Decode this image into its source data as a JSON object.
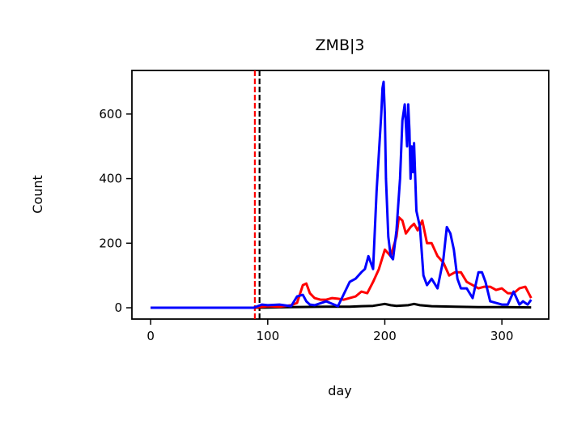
{
  "chart_data": {
    "type": "line",
    "title": "ZMB|3",
    "xlabel": "day",
    "ylabel": "Count",
    "xlim": [
      -16,
      340
    ],
    "ylim": [
      -35,
      735
    ],
    "xticks": [
      0,
      100,
      200,
      300
    ],
    "yticks": [
      0,
      200,
      400,
      600
    ],
    "grid": false,
    "legend": "none",
    "vlines": [
      {
        "x": 89,
        "color": "#ff0000",
        "style": "dashed"
      },
      {
        "x": 93,
        "color": "#000000",
        "style": "dashed"
      }
    ],
    "series": [
      {
        "color": "#000000",
        "x": [
          0,
          90,
          120,
          150,
          170,
          180,
          190,
          200,
          205,
          210,
          220,
          225,
          230,
          240,
          260,
          280,
          300,
          325
        ],
        "y": [
          0,
          0,
          2,
          3,
          3,
          5,
          6,
          12,
          8,
          6,
          8,
          12,
          8,
          5,
          3,
          2,
          2,
          1
        ]
      },
      {
        "color": "#ff0000",
        "x": [
          0,
          88,
          100,
          110,
          120,
          125,
          130,
          133,
          136,
          140,
          145,
          150,
          155,
          160,
          165,
          170,
          175,
          180,
          185,
          190,
          195,
          200,
          205,
          210,
          212,
          215,
          218,
          222,
          225,
          228,
          232,
          236,
          240,
          245,
          250,
          255,
          260,
          265,
          270,
          275,
          280,
          285,
          290,
          295,
          300,
          305,
          310,
          315,
          320,
          325
        ],
        "y": [
          0,
          0,
          5,
          3,
          8,
          15,
          70,
          75,
          45,
          30,
          25,
          25,
          30,
          28,
          25,
          30,
          35,
          50,
          45,
          80,
          120,
          180,
          160,
          220,
          280,
          270,
          230,
          250,
          260,
          240,
          270,
          200,
          200,
          160,
          140,
          100,
          110,
          110,
          80,
          70,
          60,
          65,
          65,
          55,
          60,
          45,
          45,
          60,
          65,
          30
        ]
      },
      {
        "color": "#0000ff",
        "x": [
          0,
          88,
          95,
          100,
          110,
          120,
          125,
          130,
          133,
          136,
          140,
          150,
          160,
          170,
          175,
          180,
          183,
          186,
          190,
          193,
          195,
          197,
          198,
          199,
          200,
          201,
          203,
          205,
          207,
          210,
          213,
          215,
          217,
          219,
          220,
          221,
          222,
          223,
          224,
          225,
          227,
          230,
          233,
          236,
          240,
          245,
          250,
          253,
          256,
          259,
          262,
          265,
          270,
          275,
          280,
          283,
          286,
          290,
          295,
          300,
          305,
          310,
          315,
          318,
          322,
          325
        ],
        "y": [
          0,
          0,
          10,
          8,
          10,
          5,
          35,
          40,
          20,
          10,
          8,
          20,
          5,
          80,
          90,
          110,
          120,
          160,
          120,
          360,
          480,
          600,
          680,
          700,
          600,
          400,
          220,
          160,
          150,
          240,
          400,
          580,
          630,
          500,
          630,
          550,
          400,
          500,
          420,
          510,
          300,
          250,
          100,
          70,
          90,
          60,
          150,
          250,
          230,
          180,
          90,
          60,
          60,
          30,
          110,
          110,
          80,
          20,
          15,
          10,
          10,
          50,
          10,
          20,
          10,
          25
        ]
      }
    ]
  }
}
